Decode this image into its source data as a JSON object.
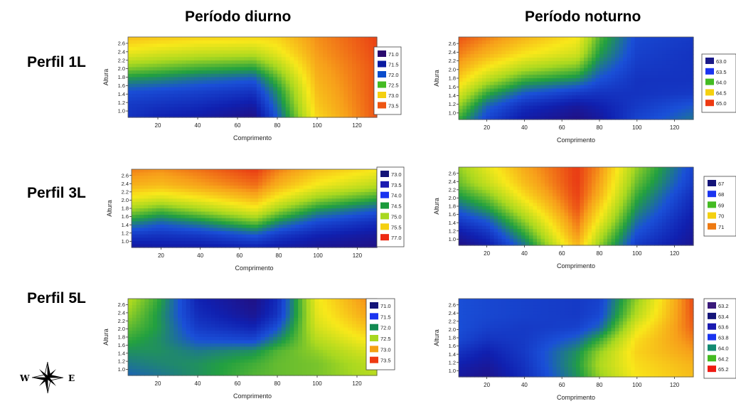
{
  "column_titles": [
    "Período diurno",
    "Período noturno"
  ],
  "row_labels": [
    "Perfil 1L",
    "Perfil 3L",
    "Perfil 5L"
  ],
  "compass": {
    "west": "W",
    "east": "E"
  },
  "chart_data": [
    {
      "type": "heatmap",
      "title": "",
      "xlabel": "Comprimento",
      "ylabel": "Altura",
      "xlim": [
        5,
        130
      ],
      "ylim": [
        0.85,
        2.75
      ],
      "x_ticks": [
        20,
        40,
        60,
        80,
        100,
        120
      ],
      "y_ticks": [
        1.0,
        1.2,
        1.4,
        1.6,
        1.8,
        2.0,
        2.2,
        2.4,
        2.6
      ],
      "legend": [
        {
          "label": "71.0",
          "color": "#2a0a6e"
        },
        {
          "label": "71.5",
          "color": "#0a1aa0"
        },
        {
          "label": "72.0",
          "color": "#0a4ccc"
        },
        {
          "label": "72.5",
          "color": "#44bb22"
        },
        {
          "label": "73.0",
          "color": "#f4d010"
        },
        {
          "label": "73.5",
          "color": "#ee5512"
        }
      ],
      "color_scale": [
        "#2a0a6e",
        "#1020b0",
        "#1a50d8",
        "#22a040",
        "#a8d820",
        "#f8e81a",
        "#f7a01a",
        "#e83214"
      ],
      "grid": {
        "x": [
          5,
          20,
          40,
          68,
          80,
          100,
          130
        ],
        "y": [
          0.85,
          1.15,
          1.45,
          1.75,
          2.05,
          2.35,
          2.75
        ],
        "z": [
          [
            0.2,
            0.15,
            0.12,
            0.05,
            0.3,
            0.75,
            0.96
          ],
          [
            0.22,
            0.2,
            0.18,
            0.12,
            0.35,
            0.78,
            0.96
          ],
          [
            0.28,
            0.26,
            0.24,
            0.2,
            0.4,
            0.8,
            0.96
          ],
          [
            0.4,
            0.38,
            0.34,
            0.3,
            0.48,
            0.82,
            0.96
          ],
          [
            0.55,
            0.52,
            0.48,
            0.45,
            0.58,
            0.84,
            0.96
          ],
          [
            0.68,
            0.65,
            0.62,
            0.6,
            0.68,
            0.86,
            0.97
          ],
          [
            0.8,
            0.78,
            0.76,
            0.75,
            0.76,
            0.88,
            0.98
          ]
        ]
      }
    },
    {
      "type": "heatmap",
      "title": "",
      "xlabel": "Comprimento",
      "ylabel": "Altura",
      "xlim": [
        5,
        130
      ],
      "ylim": [
        0.85,
        2.75
      ],
      "x_ticks": [
        20,
        40,
        60,
        80,
        100,
        120
      ],
      "y_ticks": [
        1.0,
        1.2,
        1.4,
        1.6,
        1.8,
        2.0,
        2.2,
        2.4,
        2.6
      ],
      "legend": [
        {
          "label": "63.0",
          "color": "#1a1a88"
        },
        {
          "label": "63.5",
          "color": "#1a34f0"
        },
        {
          "label": "64.0",
          "color": "#44bb22"
        },
        {
          "label": "64.5",
          "color": "#f4d010"
        },
        {
          "label": "65.0",
          "color": "#ee3a12"
        }
      ],
      "color_scale": [
        "#2a0a6e",
        "#1020b0",
        "#1a50d8",
        "#22a040",
        "#a8d820",
        "#f8e81a",
        "#f7a01a",
        "#e83214"
      ],
      "grid": {
        "x": [
          5,
          20,
          40,
          68,
          80,
          100,
          130
        ],
        "y": [
          0.85,
          1.15,
          1.45,
          1.75,
          2.05,
          2.35,
          2.75
        ],
        "z": [
          [
            0.45,
            0.25,
            0.12,
            0.05,
            0.1,
            0.25,
            0.35
          ],
          [
            0.55,
            0.32,
            0.18,
            0.1,
            0.14,
            0.22,
            0.3
          ],
          [
            0.66,
            0.45,
            0.3,
            0.22,
            0.2,
            0.2,
            0.22
          ],
          [
            0.76,
            0.6,
            0.45,
            0.38,
            0.28,
            0.2,
            0.2
          ],
          [
            0.84,
            0.72,
            0.6,
            0.52,
            0.35,
            0.22,
            0.2
          ],
          [
            0.9,
            0.82,
            0.72,
            0.64,
            0.42,
            0.24,
            0.2
          ],
          [
            0.96,
            0.9,
            0.82,
            0.72,
            0.48,
            0.26,
            0.22
          ]
        ]
      }
    },
    {
      "type": "heatmap",
      "title": "",
      "xlabel": "Comprimento",
      "ylabel": "Altura",
      "xlim": [
        5,
        130
      ],
      "ylim": [
        0.85,
        2.75
      ],
      "x_ticks": [
        20,
        40,
        60,
        80,
        100,
        120
      ],
      "y_ticks": [
        1.0,
        1.2,
        1.4,
        1.6,
        1.8,
        2.0,
        2.2,
        2.4,
        2.6
      ],
      "legend": [
        {
          "label": "73.0",
          "color": "#141478"
        },
        {
          "label": "73.5",
          "color": "#1a1ab0"
        },
        {
          "label": "74.0",
          "color": "#1a34f0"
        },
        {
          "label": "74.5",
          "color": "#1a9a3a"
        },
        {
          "label": "75.0",
          "color": "#a8d820"
        },
        {
          "label": "75.5",
          "color": "#f4d010"
        },
        {
          "label": "77.0",
          "color": "#ee2a12"
        }
      ],
      "color_scale": [
        "#2a0a6e",
        "#1020b0",
        "#1a50d8",
        "#22a040",
        "#a8d820",
        "#f8e81a",
        "#f7a01a",
        "#e83214"
      ],
      "grid": {
        "x": [
          5,
          20,
          40,
          68,
          80,
          100,
          130
        ],
        "y": [
          0.85,
          1.15,
          1.45,
          1.75,
          2.05,
          2.35,
          2.75
        ],
        "z": [
          [
            0.1,
            0.12,
            0.12,
            0.15,
            0.12,
            0.08,
            0.05
          ],
          [
            0.22,
            0.2,
            0.22,
            0.3,
            0.22,
            0.15,
            0.1
          ],
          [
            0.38,
            0.32,
            0.38,
            0.5,
            0.38,
            0.26,
            0.18
          ],
          [
            0.55,
            0.48,
            0.56,
            0.68,
            0.55,
            0.4,
            0.3
          ],
          [
            0.7,
            0.66,
            0.72,
            0.82,
            0.7,
            0.56,
            0.45
          ],
          [
            0.82,
            0.8,
            0.85,
            0.92,
            0.82,
            0.7,
            0.6
          ],
          [
            0.9,
            0.88,
            0.92,
            0.99,
            0.9,
            0.8,
            0.72
          ]
        ]
      }
    },
    {
      "type": "heatmap",
      "title": "",
      "xlabel": "Comprimento",
      "ylabel": "Altura",
      "xlim": [
        5,
        130
      ],
      "ylim": [
        0.85,
        2.75
      ],
      "x_ticks": [
        20,
        40,
        60,
        80,
        100,
        120
      ],
      "y_ticks": [
        1.0,
        1.2,
        1.4,
        1.6,
        1.8,
        2.0,
        2.2,
        2.4,
        2.6
      ],
      "legend": [
        {
          "label": "67",
          "color": "#141478"
        },
        {
          "label": "68",
          "color": "#1a34f0"
        },
        {
          "label": "69",
          "color": "#44bb22"
        },
        {
          "label": "70",
          "color": "#f4d010"
        },
        {
          "label": "71",
          "color": "#ee7a12"
        }
      ],
      "color_scale": [
        "#2a0a6e",
        "#1020b0",
        "#1a50d8",
        "#22a040",
        "#a8d820",
        "#f8e81a",
        "#f7a01a",
        "#e83214"
      ],
      "grid": {
        "x": [
          5,
          20,
          40,
          68,
          80,
          100,
          130
        ],
        "y": [
          0.85,
          1.15,
          1.45,
          1.75,
          2.05,
          2.35,
          2.75
        ],
        "z": [
          [
            0.05,
            0.12,
            0.35,
            0.82,
            0.55,
            0.22,
            0.08
          ],
          [
            0.12,
            0.2,
            0.45,
            0.88,
            0.62,
            0.28,
            0.1
          ],
          [
            0.22,
            0.3,
            0.55,
            0.92,
            0.7,
            0.34,
            0.12
          ],
          [
            0.32,
            0.42,
            0.65,
            0.96,
            0.76,
            0.4,
            0.15
          ],
          [
            0.42,
            0.52,
            0.74,
            0.98,
            0.82,
            0.45,
            0.18
          ],
          [
            0.5,
            0.62,
            0.8,
            0.99,
            0.85,
            0.5,
            0.22
          ],
          [
            0.55,
            0.68,
            0.84,
            0.99,
            0.88,
            0.55,
            0.25
          ]
        ]
      }
    },
    {
      "type": "heatmap",
      "title": "",
      "xlabel": "Comprimento",
      "ylabel": "Altura",
      "xlim": [
        5,
        130
      ],
      "ylim": [
        0.85,
        2.75
      ],
      "x_ticks": [
        20,
        40,
        60,
        80,
        100,
        120
      ],
      "y_ticks": [
        1.0,
        1.2,
        1.4,
        1.6,
        1.8,
        2.0,
        2.2,
        2.4,
        2.6
      ],
      "legend": [
        {
          "label": "71.0",
          "color": "#141478"
        },
        {
          "label": "71.5",
          "color": "#1a34f0"
        },
        {
          "label": "72.0",
          "color": "#128a52"
        },
        {
          "label": "72.5",
          "color": "#a8d820"
        },
        {
          "label": "73.0",
          "color": "#f4a012"
        },
        {
          "label": "73.5",
          "color": "#ee3a12"
        }
      ],
      "color_scale": [
        "#2a0a6e",
        "#1020b0",
        "#1a50d8",
        "#22a040",
        "#a8d820",
        "#f8e81a",
        "#f7a01a",
        "#e83214"
      ],
      "grid": {
        "x": [
          5,
          20,
          40,
          68,
          80,
          100,
          130
        ],
        "y": [
          0.85,
          1.15,
          1.45,
          1.75,
          2.05,
          2.35,
          2.75
        ],
        "z": [
          [
            0.32,
            0.35,
            0.4,
            0.48,
            0.5,
            0.52,
            0.6
          ],
          [
            0.36,
            0.38,
            0.4,
            0.46,
            0.5,
            0.52,
            0.62
          ],
          [
            0.4,
            0.4,
            0.36,
            0.4,
            0.48,
            0.55,
            0.68
          ],
          [
            0.45,
            0.4,
            0.28,
            0.25,
            0.38,
            0.6,
            0.75
          ],
          [
            0.5,
            0.42,
            0.22,
            0.15,
            0.28,
            0.65,
            0.82
          ],
          [
            0.55,
            0.42,
            0.18,
            0.08,
            0.2,
            0.68,
            0.88
          ],
          [
            0.6,
            0.45,
            0.15,
            0.05,
            0.18,
            0.7,
            0.92
          ]
        ]
      }
    },
    {
      "type": "heatmap",
      "title": "",
      "xlabel": "Comprimento",
      "ylabel": "Altura",
      "xlim": [
        5,
        130
      ],
      "ylim": [
        0.85,
        2.75
      ],
      "x_ticks": [
        20,
        40,
        60,
        80,
        100,
        120
      ],
      "y_ticks": [
        1.0,
        1.2,
        1.4,
        1.6,
        1.8,
        2.0,
        2.2,
        2.4,
        2.6
      ],
      "legend": [
        {
          "label": "63.2",
          "color": "#3a1a7a"
        },
        {
          "label": "63.4",
          "color": "#141478"
        },
        {
          "label": "63.6",
          "color": "#1a1ab0"
        },
        {
          "label": "63.8",
          "color": "#1a34f0"
        },
        {
          "label": "64.0",
          "color": "#128a72"
        },
        {
          "label": "64.2",
          "color": "#44bb22"
        },
        {
          "label": "65.2",
          "color": "#ee1a12"
        }
      ],
      "color_scale": [
        "#2a0a6e",
        "#1020b0",
        "#1a50d8",
        "#22a040",
        "#a8d820",
        "#f8e81a",
        "#f7a01a",
        "#e83214"
      ],
      "grid": {
        "x": [
          5,
          20,
          40,
          68,
          80,
          100,
          130
        ],
        "y": [
          0.85,
          1.15,
          1.45,
          1.75,
          2.05,
          2.35,
          2.75
        ],
        "z": [
          [
            0.1,
            0.06,
            0.18,
            0.4,
            0.55,
            0.72,
            0.8
          ],
          [
            0.14,
            0.1,
            0.2,
            0.42,
            0.58,
            0.74,
            0.82
          ],
          [
            0.2,
            0.14,
            0.22,
            0.4,
            0.55,
            0.76,
            0.86
          ],
          [
            0.26,
            0.2,
            0.22,
            0.32,
            0.45,
            0.74,
            0.9
          ],
          [
            0.28,
            0.24,
            0.22,
            0.24,
            0.32,
            0.68,
            0.94
          ],
          [
            0.28,
            0.26,
            0.24,
            0.22,
            0.26,
            0.6,
            0.96
          ],
          [
            0.28,
            0.26,
            0.24,
            0.22,
            0.24,
            0.55,
            0.97
          ]
        ]
      }
    }
  ]
}
